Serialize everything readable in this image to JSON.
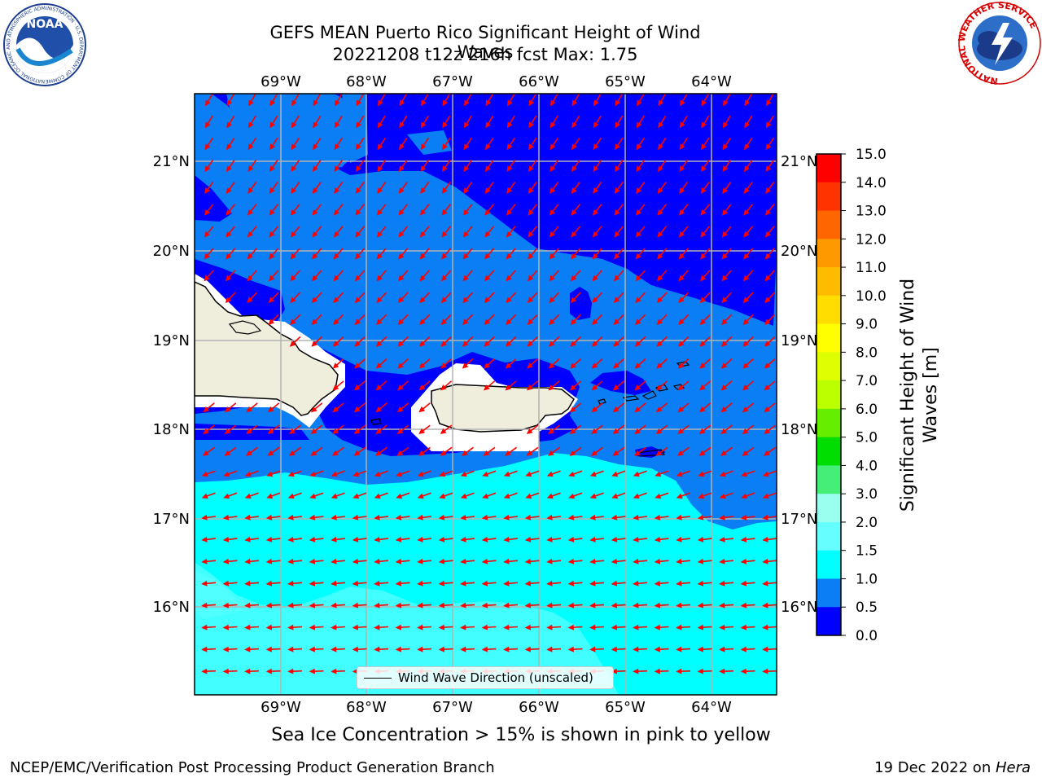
{
  "title": {
    "line1": "GEFS MEAN Puerto Rico Significant Height of Wind Waves",
    "line2": "20221208 t12z 216h fcst   Max: 1.75"
  },
  "logos": {
    "noaa_text": "NOAA",
    "noaa_ring_text": "NATIONAL OCEANIC AND ATMOSPHERIC ADMINISTRATION · U.S. DEPARTMENT OF COMMERCE",
    "nws_ring_text": "NATIONAL WEATHER SERVICE"
  },
  "map": {
    "lon_ticks": [
      "69°W",
      "68°W",
      "67°W",
      "66°W",
      "65°W",
      "64°W"
    ],
    "lat_ticks": [
      "21°N",
      "20°N",
      "19°N",
      "18°N",
      "17°N",
      "16°N"
    ],
    "colors": {
      "land": "#efeddc",
      "band_0_0_5": "#0000ff",
      "band_0_5_1_0": "#0a7ff5",
      "band_1_0_1_5": "#00ffff",
      "band_1_5_2_0": "#41ffff",
      "grid": "#b3b3b3",
      "arrow": "#ff0000"
    }
  },
  "legend": {
    "label": "Wind Wave Direction (unscaled)"
  },
  "colorbar": {
    "label": "Significant Height of Wind Waves [m]",
    "ticks": [
      "15.0",
      "14.0",
      "13.0",
      "12.0",
      "11.0",
      "10.0",
      "9.0",
      "8.0",
      "7.0",
      "6.0",
      "5.0",
      "4.0",
      "3.0",
      "2.0",
      "1.5",
      "1.0",
      "0.5",
      "0.0"
    ],
    "colors": [
      "#ff0000",
      "#ff3300",
      "#ff6600",
      "#ff9900",
      "#ffbb00",
      "#ffdd00",
      "#ffff00",
      "#ddff00",
      "#bbff00",
      "#66ee00",
      "#00dd00",
      "#44ee77",
      "#99ffee",
      "#66ffff",
      "#00ffff",
      "#0a7ff5",
      "#0000ff"
    ]
  },
  "caption": "Sea Ice Concentration > 15% is shown in pink to yellow",
  "footer": {
    "left": "NCEP/EMC/Verification Post Processing Product Generation Branch",
    "right_prefix": "19 Dec 2022 on ",
    "right_machine": "Hera"
  }
}
